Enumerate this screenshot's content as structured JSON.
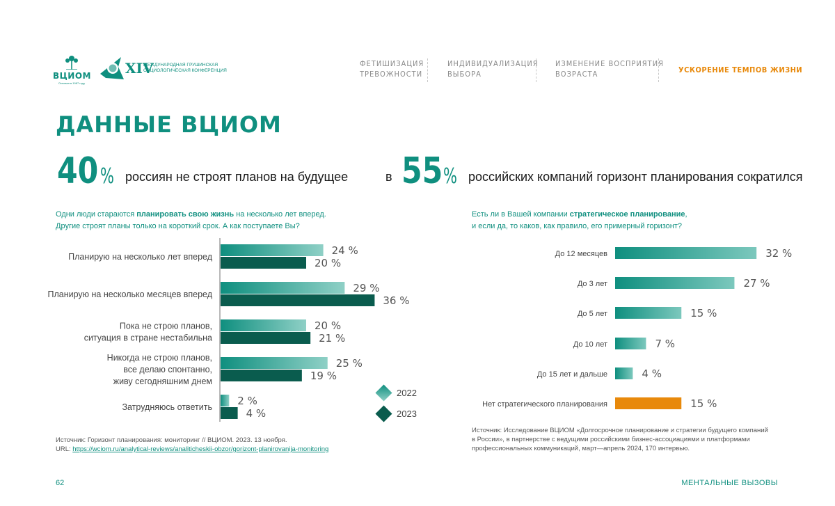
{
  "header": {
    "logo_vciom": {
      "name": "ВЦИОМ",
      "sub": "Основан в 1987 году"
    },
    "logo_conf": {
      "roman": "XIV",
      "text": "Международная грушинская социологическая конференция"
    },
    "nav": [
      {
        "line1": "Фетишизация",
        "line2": "тревожности",
        "active": false
      },
      {
        "line1": "Индивидуализация",
        "line2": "выбора",
        "active": false
      },
      {
        "line1": "Изменение восприятия",
        "line2": "возраста",
        "active": false
      },
      {
        "line1": "Ускорение темпов жизни",
        "line2": "",
        "active": true
      }
    ]
  },
  "title": "ДАННЫЕ ВЦИОМ",
  "stats": {
    "left": {
      "value": "40",
      "unit": "%",
      "text": "россиян не строят планов на будущее"
    },
    "right": {
      "prefix": "в",
      "value": "55",
      "unit": "%",
      "text": "российских компаний горизонт планирования сократился"
    }
  },
  "left_question": {
    "line1_pre": "Одни люди стараются ",
    "line1_bold": "планировать свою жизнь",
    "line1_post": " на несколько лет вперед.",
    "line2": "Другие строят планы только на короткий срок. А как поступаете Вы?"
  },
  "right_question": {
    "line1_pre": "Есть ли в Вашей компании ",
    "line1_bold": "стратегическое планирование",
    "line1_post": ",",
    "line2": "и если да, то каков, как правило, его примерный горизонт?"
  },
  "legend": {
    "a": "2022",
    "b": "2023"
  },
  "colors": {
    "teal": "#0f8f7f",
    "teal_dark": "#0a5c4e",
    "teal_light": "#6fc3b7",
    "orange": "#e8890b"
  },
  "chart_data": [
    {
      "type": "bar",
      "orientation": "horizontal",
      "categories": [
        [
          "Планирую на несколько лет вперед"
        ],
        [
          "Планирую на несколько месяцев вперед"
        ],
        [
          "Пока не строю планов,",
          "ситуация в стране нестабильна"
        ],
        [
          "Никогда не строю планов,",
          "все делаю спонтанно,",
          "живу сегодняшним днем"
        ],
        [
          "Затрудняюсь ответить"
        ]
      ],
      "series": [
        {
          "name": "2022",
          "values": [
            24,
            29,
            20,
            25,
            2
          ],
          "labels": [
            "24 %",
            "29 %",
            "20 %",
            "25 %",
            "2 %"
          ]
        },
        {
          "name": "2023",
          "values": [
            20,
            36,
            21,
            19,
            4
          ],
          "labels": [
            "20 %",
            "36 %",
            "21 %",
            "19 %",
            "4 %"
          ]
        }
      ],
      "unit": "%"
    },
    {
      "type": "bar",
      "orientation": "horizontal",
      "categories": [
        "До 12 месяцев",
        "До 3 лет",
        "До 5 лет",
        "До 10 лет",
        "До 15 лет и дальше",
        "Нет стратегического планирования"
      ],
      "values": [
        32,
        27,
        15,
        7,
        4,
        15
      ],
      "labels": [
        "32 %",
        "27 %",
        "15 %",
        "7 %",
        "4 %",
        "15 %"
      ],
      "highlight_index": 5,
      "unit": "%"
    }
  ],
  "sources": {
    "left_line1": "Источник: Горизонт планирования: мониторинг // ВЦИОМ. 2023. 13 ноября.",
    "left_url_label": "URL: ",
    "left_url": "https://wciom.ru/analytical-reviews/analiticheskii-obzor/gorizont-planirovanija-monitoring",
    "right_line1": "Источник: Исследование ВЦИОМ «Долгосрочное планирование и стратегии будущего компаний",
    "right_line2": "в России», в партнерстве с ведущими российскими бизнес-ассоциациями и платформами",
    "right_line3": "профессиональных коммуникаций, март—апрель 2024, 170 интервью."
  },
  "footer": {
    "page": "62",
    "section": "Ментальные вызовы"
  }
}
